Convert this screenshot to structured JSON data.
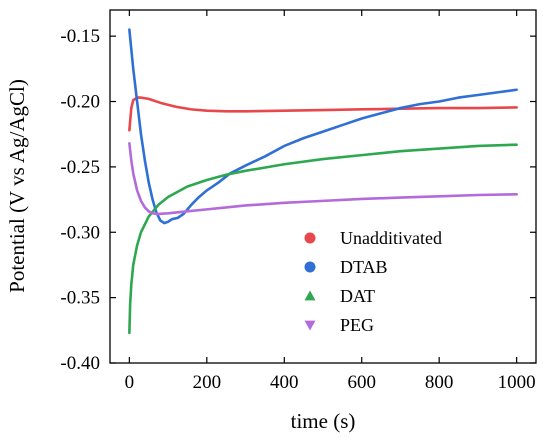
{
  "chart_data": {
    "type": "line",
    "title": "",
    "xlabel": "time (s)",
    "ylabel": "Potential (V vs Ag/AgCl)",
    "xlim": [
      -50,
      1050
    ],
    "ylim": [
      -0.4,
      -0.13
    ],
    "xticks": [
      0,
      200,
      400,
      600,
      800,
      1000
    ],
    "xtick_labels": [
      "0",
      "200",
      "400",
      "600",
      "800",
      "1000"
    ],
    "yticks": [
      -0.4,
      -0.35,
      -0.3,
      -0.25,
      -0.2,
      -0.15
    ],
    "ytick_labels": [
      "-0.40",
      "-0.35",
      "-0.30",
      "-0.25",
      "-0.20",
      "-0.15"
    ],
    "grid": false,
    "legend_position": "bottom-right",
    "series": [
      {
        "name": "Unadditivated",
        "color": "#e8474b",
        "marker": "circle",
        "points": [
          [
            0,
            -0.222
          ],
          [
            5,
            -0.205
          ],
          [
            10,
            -0.199
          ],
          [
            20,
            -0.197
          ],
          [
            30,
            -0.197
          ],
          [
            50,
            -0.198
          ],
          [
            80,
            -0.201
          ],
          [
            120,
            -0.204
          ],
          [
            160,
            -0.206
          ],
          [
            200,
            -0.207
          ],
          [
            250,
            -0.2075
          ],
          [
            300,
            -0.2075
          ],
          [
            400,
            -0.207
          ],
          [
            500,
            -0.2065
          ],
          [
            600,
            -0.206
          ],
          [
            700,
            -0.2055
          ],
          [
            800,
            -0.205
          ],
          [
            900,
            -0.205
          ],
          [
            1000,
            -0.2045
          ]
        ]
      },
      {
        "name": "DTAB",
        "color": "#2f6fd6",
        "marker": "circle",
        "points": [
          [
            0,
            -0.145
          ],
          [
            5,
            -0.16
          ],
          [
            10,
            -0.175
          ],
          [
            20,
            -0.2
          ],
          [
            30,
            -0.225
          ],
          [
            40,
            -0.245
          ],
          [
            50,
            -0.262
          ],
          [
            60,
            -0.275
          ],
          [
            70,
            -0.285
          ],
          [
            80,
            -0.291
          ],
          [
            90,
            -0.293
          ],
          [
            100,
            -0.292
          ],
          [
            110,
            -0.29
          ],
          [
            125,
            -0.289
          ],
          [
            140,
            -0.286
          ],
          [
            160,
            -0.279
          ],
          [
            180,
            -0.273
          ],
          [
            200,
            -0.268
          ],
          [
            230,
            -0.262
          ],
          [
            260,
            -0.255
          ],
          [
            300,
            -0.249
          ],
          [
            350,
            -0.242
          ],
          [
            400,
            -0.234
          ],
          [
            450,
            -0.228
          ],
          [
            500,
            -0.223
          ],
          [
            550,
            -0.218
          ],
          [
            600,
            -0.213
          ],
          [
            650,
            -0.209
          ],
          [
            700,
            -0.205
          ],
          [
            750,
            -0.202
          ],
          [
            800,
            -0.2
          ],
          [
            850,
            -0.197
          ],
          [
            900,
            -0.195
          ],
          [
            950,
            -0.193
          ],
          [
            1000,
            -0.191
          ]
        ]
      },
      {
        "name": "DAT",
        "color": "#2ea84f",
        "marker": "triangle",
        "points": [
          [
            0,
            -0.377
          ],
          [
            2,
            -0.355
          ],
          [
            5,
            -0.34
          ],
          [
            10,
            -0.325
          ],
          [
            20,
            -0.31
          ],
          [
            30,
            -0.3
          ],
          [
            50,
            -0.288
          ],
          [
            75,
            -0.279
          ],
          [
            100,
            -0.273
          ],
          [
            150,
            -0.265
          ],
          [
            200,
            -0.26
          ],
          [
            250,
            -0.256
          ],
          [
            300,
            -0.253
          ],
          [
            400,
            -0.248
          ],
          [
            500,
            -0.244
          ],
          [
            600,
            -0.241
          ],
          [
            700,
            -0.238
          ],
          [
            800,
            -0.236
          ],
          [
            900,
            -0.234
          ],
          [
            1000,
            -0.233
          ]
        ]
      },
      {
        "name": "PEG",
        "color": "#b36bdc",
        "marker": "triangle-down",
        "points": [
          [
            0,
            -0.232
          ],
          [
            5,
            -0.245
          ],
          [
            10,
            -0.255
          ],
          [
            20,
            -0.268
          ],
          [
            30,
            -0.276
          ],
          [
            40,
            -0.281
          ],
          [
            50,
            -0.284
          ],
          [
            60,
            -0.2855
          ],
          [
            75,
            -0.286
          ],
          [
            100,
            -0.2855
          ],
          [
            150,
            -0.284
          ],
          [
            200,
            -0.2825
          ],
          [
            250,
            -0.281
          ],
          [
            300,
            -0.2795
          ],
          [
            400,
            -0.2775
          ],
          [
            500,
            -0.276
          ],
          [
            600,
            -0.2745
          ],
          [
            700,
            -0.2735
          ],
          [
            800,
            -0.2725
          ],
          [
            900,
            -0.2715
          ],
          [
            1000,
            -0.271
          ]
        ]
      }
    ]
  }
}
